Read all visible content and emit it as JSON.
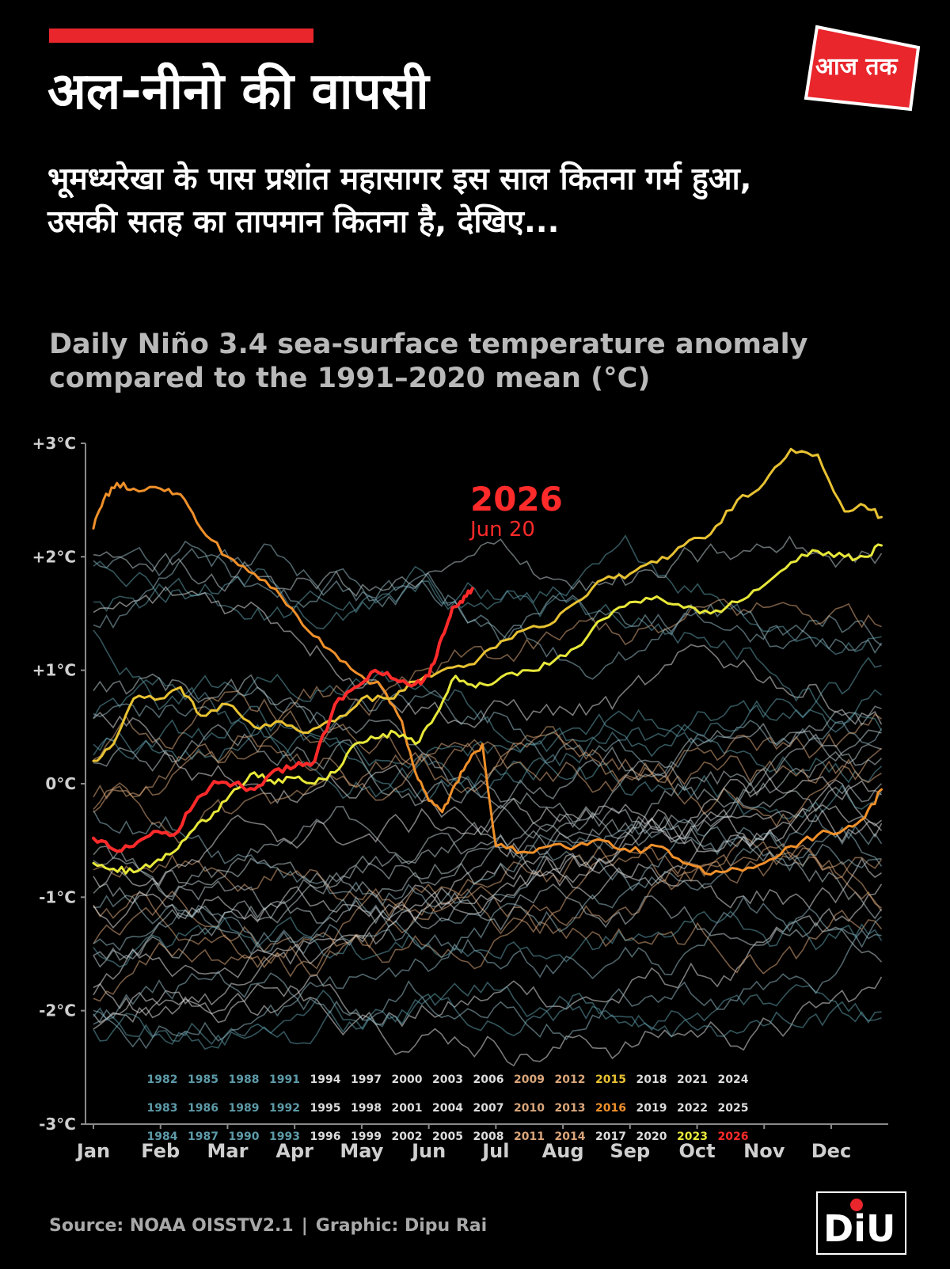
{
  "header": {
    "title": "अल-नीनो की वापसी",
    "subtitle": "भूमध्यरेखा के पास प्रशांत महासागर इस साल कितना गर्म हुआ, उसकी सतह का तापमान कितना है, देखिए...",
    "description": "Daily Niño 3.4 sea-surface temperature anomaly compared to the 1991–2020 mean (°C)",
    "logo_text": "आज तक"
  },
  "footer": {
    "source": "Source: NOAA OISSTV2.1",
    "separator": "|",
    "graphic": "Graphic: Dipu Rai",
    "brand": "DiU"
  },
  "colors": {
    "background": "#000000",
    "accent_red": "#e8262c",
    "y2026": "#ff2a2a",
    "y2015": "#e8c232",
    "y2016": "#f0902a",
    "y2023": "#e8e83a",
    "cool_years": "#5d9aa8",
    "neutral_years": "#dcdcdc",
    "warm_years": "#d9a57a"
  },
  "chart_data": {
    "type": "line",
    "title": "",
    "xlabel": "",
    "ylabel": "",
    "y_ticks": [
      "+3°C",
      "+2°C",
      "+1°C",
      "0°C",
      "-1°C",
      "-2°C",
      "-3°C"
    ],
    "y_tick_values": [
      3,
      2,
      1,
      0,
      -1,
      -2,
      -3
    ],
    "ylim": [
      -3,
      3
    ],
    "x_ticks": [
      "Jan",
      "Feb",
      "Mar",
      "Apr",
      "May",
      "Jun",
      "Jul",
      "Aug",
      "Sep",
      "Oct",
      "Nov",
      "Dec"
    ],
    "grid": false,
    "annotation": {
      "label": "2026",
      "sublabel": "Jun 20",
      "x_month": 5.65,
      "y": 1.72
    },
    "legend": {
      "placement": "bottom",
      "rows": [
        [
          "1982",
          "1985",
          "1988",
          "1991",
          "1994",
          "1997",
          "2000",
          "2003",
          "2006",
          "2009",
          "2012",
          "2015",
          "2018",
          "2021",
          "2024"
        ],
        [
          "1983",
          "1986",
          "1989",
          "1992",
          "1995",
          "1998",
          "2001",
          "2004",
          "2007",
          "2010",
          "2013",
          "2016",
          "2019",
          "2022",
          "2025"
        ],
        [
          "1984",
          "1987",
          "1990",
          "1993",
          "1996",
          "1999",
          "2002",
          "2005",
          "2008",
          "2011",
          "2014",
          "2017",
          "2020",
          "2023",
          "2026"
        ]
      ]
    },
    "highlight_series": [
      {
        "name": "2026",
        "color": "#ff2a2a",
        "width": 4,
        "x": [
          0,
          0.3,
          0.6,
          0.9,
          1.2,
          1.5,
          1.8,
          2.1,
          2.4,
          2.7,
          3.0,
          3.3,
          3.6,
          3.9,
          4.2,
          4.5,
          4.8,
          5.0,
          5.2,
          5.35,
          5.5,
          5.65
        ],
        "y": [
          -0.48,
          -0.58,
          -0.55,
          -0.42,
          -0.45,
          -0.18,
          0.02,
          0.0,
          -0.05,
          0.12,
          0.15,
          0.2,
          0.7,
          0.85,
          1.0,
          0.92,
          0.88,
          0.95,
          1.3,
          1.55,
          1.6,
          1.72
        ]
      },
      {
        "name": "2015",
        "color": "#e8c232",
        "width": 3,
        "x": [
          0,
          0.3,
          0.6,
          1.0,
          1.3,
          1.6,
          2.0,
          2.4,
          2.8,
          3.2,
          3.6,
          4.0,
          4.4,
          4.8,
          5.2,
          5.6,
          6.0,
          6.4,
          6.8,
          7.2,
          7.6,
          8.0,
          8.4,
          8.8,
          9.2,
          9.6,
          10.0,
          10.4,
          10.8,
          11.2,
          11.5,
          11.75
        ],
        "y": [
          0.2,
          0.35,
          0.75,
          0.75,
          0.85,
          0.6,
          0.7,
          0.5,
          0.55,
          0.45,
          0.55,
          0.75,
          0.75,
          0.9,
          1.0,
          1.05,
          1.2,
          1.35,
          1.4,
          1.6,
          1.8,
          1.85,
          1.95,
          2.1,
          2.2,
          2.5,
          2.65,
          2.95,
          2.9,
          2.4,
          2.45,
          2.35
        ]
      },
      {
        "name": "2016",
        "color": "#f0902a",
        "width": 3,
        "x": [
          0,
          0.15,
          0.35,
          0.6,
          1.0,
          1.3,
          1.6,
          2.0,
          2.4,
          2.8,
          3.2,
          3.6,
          4.0,
          4.3,
          4.6,
          4.8,
          5.0,
          5.2,
          5.4,
          5.6,
          5.8,
          6.0,
          6.4,
          6.8,
          7.2,
          7.6,
          8.0,
          8.4,
          8.8,
          9.2,
          9.6,
          10.0,
          10.4,
          10.8,
          11.2,
          11.5,
          11.75
        ],
        "y": [
          2.25,
          2.5,
          2.65,
          2.6,
          2.6,
          2.55,
          2.25,
          2.0,
          1.85,
          1.65,
          1.35,
          1.15,
          0.95,
          0.85,
          0.55,
          0.1,
          -0.15,
          -0.25,
          0.0,
          0.2,
          0.35,
          -0.55,
          -0.6,
          -0.55,
          -0.55,
          -0.5,
          -0.6,
          -0.55,
          -0.7,
          -0.8,
          -0.75,
          -0.7,
          -0.55,
          -0.45,
          -0.4,
          -0.3,
          -0.05
        ]
      },
      {
        "name": "2023",
        "color": "#e8e83a",
        "width": 3,
        "x": [
          0,
          0.3,
          0.6,
          0.9,
          1.2,
          1.5,
          1.8,
          2.1,
          2.4,
          2.7,
          3.0,
          3.3,
          3.6,
          3.9,
          4.2,
          4.5,
          4.8,
          5.1,
          5.4,
          5.7,
          6.0,
          6.4,
          6.8,
          7.2,
          7.6,
          8.0,
          8.4,
          8.8,
          9.2,
          9.6,
          10.0,
          10.4,
          10.8,
          11.2,
          11.5,
          11.75
        ],
        "y": [
          -0.7,
          -0.75,
          -0.78,
          -0.7,
          -0.6,
          -0.4,
          -0.25,
          -0.05,
          0.1,
          0.0,
          0.05,
          0.0,
          0.1,
          0.35,
          0.4,
          0.45,
          0.35,
          0.6,
          0.95,
          0.85,
          0.9,
          1.0,
          1.05,
          1.2,
          1.45,
          1.6,
          1.65,
          1.55,
          1.5,
          1.6,
          1.75,
          1.95,
          2.05,
          2.0,
          2.0,
          2.1
        ]
      }
    ],
    "background_series_note": "41 thin lines for 1982–2025 years (cool, neutral and warm tints)"
  }
}
